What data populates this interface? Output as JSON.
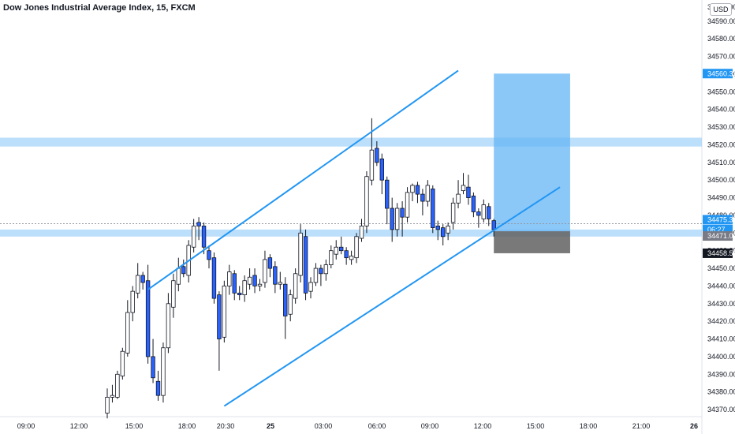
{
  "header": {
    "title": "Dow Jones Industrial Average Index, 15, FXCM",
    "currency": "USD"
  },
  "colors": {
    "bull": "#ffffff",
    "bear": "#2962ff",
    "candle_outline": "#131722",
    "channel": "#2196f3",
    "zone": "#90caf9",
    "target": "#64b5f6",
    "stop": "#616161"
  },
  "chart_data": {
    "type": "candlestick",
    "title": "Dow Jones Industrial Average Index, 15, FXCM",
    "ylim": [
      34366,
      34602
    ],
    "y_ticks": [
      34370,
      34380,
      34390,
      34400,
      34410,
      34420,
      34430,
      34440,
      34450,
      34460,
      34470,
      34480,
      34490,
      34500,
      34510,
      34520,
      34530,
      34540,
      34550,
      34560,
      34570,
      34580,
      34590
    ],
    "y_top_partial_label": "34600.00",
    "x_ticks": [
      "09:00",
      "12:00",
      "15:00",
      "18:00",
      "20:30",
      "25",
      "03:00",
      "06:00",
      "09:00",
      "12:00",
      "15:00",
      "18:00",
      "21:00",
      "26"
    ],
    "price_tags": [
      {
        "label": "34560.32",
        "style": "target"
      },
      {
        "label": "34475.31",
        "style": "last"
      },
      {
        "label": "06:27",
        "style": "countdown"
      },
      {
        "label": "34471.02",
        "style": "entry"
      },
      {
        "label": "34458.55",
        "style": "stop"
      }
    ],
    "zones": [
      {
        "low": 34519,
        "high": 34524
      },
      {
        "low": 34468,
        "high": 34472
      }
    ],
    "channel_lines": [
      {
        "from": [
          8,
          34438
        ],
        "to": [
          69,
          34562
        ]
      },
      {
        "from": [
          23,
          34372
        ],
        "to": [
          89,
          34496
        ]
      }
    ],
    "position": {
      "entry": 34471.02,
      "target": 34560.32,
      "stop": 34458.55,
      "start_index": 76,
      "end_index": 91
    },
    "candles": [
      [
        34377,
        34368,
        34382,
        34365
      ],
      [
        34378,
        34377,
        34384,
        34374
      ],
      [
        34390,
        34377,
        34392,
        34376
      ],
      [
        34403,
        34389,
        34405,
        34387
      ],
      [
        34425,
        34402,
        34432,
        34400
      ],
      [
        34437,
        34425,
        34440,
        34420
      ],
      [
        34446,
        34436,
        34453,
        34433
      ],
      [
        34442,
        34446,
        34448,
        34438
      ],
      [
        34400,
        34443,
        34452,
        34396
      ],
      [
        34388,
        34400,
        34410,
        34385
      ],
      [
        34378,
        34386,
        34392,
        34375
      ],
      [
        34405,
        34378,
        34408,
        34374
      ],
      [
        34430,
        34405,
        34436,
        34402
      ],
      [
        34443,
        34428,
        34447,
        34422
      ],
      [
        34450,
        34441,
        34456,
        34437
      ],
      [
        34447,
        34451,
        34455,
        34445
      ],
      [
        34463,
        34446,
        34466,
        34442
      ],
      [
        34474,
        34462,
        34478,
        34459
      ],
      [
        34474,
        34476,
        34479,
        34466
      ],
      [
        34462,
        34474,
        34476,
        34458
      ],
      [
        34455,
        34460,
        34463,
        34450
      ],
      [
        34433,
        34456,
        34459,
        34430
      ],
      [
        34410,
        34435,
        34437,
        34392
      ],
      [
        34440,
        34411,
        34443,
        34408
      ],
      [
        34448,
        34440,
        34452,
        34435
      ],
      [
        34436,
        34447,
        34449,
        34432
      ],
      [
        34435,
        34436,
        34440,
        34432
      ],
      [
        34443,
        34435,
        34446,
        34431
      ],
      [
        34445,
        34441,
        34450,
        34438
      ],
      [
        34440,
        34446,
        34450,
        34436
      ],
      [
        34441,
        34440,
        34444,
        34437
      ],
      [
        34455,
        34442,
        34460,
        34439
      ],
      [
        34450,
        34456,
        34458,
        34445
      ],
      [
        34441,
        34451,
        34454,
        34436
      ],
      [
        34442,
        34441,
        34448,
        34438
      ],
      [
        34423,
        34441,
        34445,
        34410
      ],
      [
        34435,
        34424,
        34438,
        34420
      ],
      [
        34447,
        34433,
        34450,
        34430
      ],
      [
        34470,
        34446,
        34475,
        34442
      ],
      [
        34436,
        34468,
        34472,
        34432
      ],
      [
        34442,
        34437,
        34445,
        34433
      ],
      [
        34450,
        34442,
        34453,
        34440
      ],
      [
        34447,
        34450,
        34452,
        34440
      ],
      [
        34452,
        34447,
        34455,
        34443
      ],
      [
        34460,
        34452,
        34463,
        34450
      ],
      [
        34462,
        34458,
        34466,
        34455
      ],
      [
        34460,
        34462,
        34468,
        34458
      ],
      [
        34456,
        34460,
        34462,
        34452
      ],
      [
        34457,
        34455,
        34460,
        34452
      ],
      [
        34468,
        34456,
        34470,
        34453
      ],
      [
        34474,
        34467,
        34478,
        34465
      ],
      [
        34502,
        34474,
        34505,
        34470
      ],
      [
        34517,
        34500,
        34535,
        34497
      ],
      [
        34510,
        34518,
        34522,
        34508
      ],
      [
        34500,
        34512,
        34515,
        34492
      ],
      [
        34484,
        34500,
        34502,
        34475
      ],
      [
        34472,
        34484,
        34490,
        34465
      ],
      [
        34484,
        34472,
        34487,
        34468
      ],
      [
        34479,
        34484,
        34488,
        34468
      ],
      [
        34493,
        34479,
        34496,
        34476
      ],
      [
        34497,
        34493,
        34498,
        34488
      ],
      [
        34492,
        34497,
        34499,
        34487
      ],
      [
        34488,
        34492,
        34495,
        34480
      ],
      [
        34497,
        34488,
        34500,
        34485
      ],
      [
        34473,
        34495,
        34497,
        34470
      ],
      [
        34472,
        34474,
        34477,
        34466
      ],
      [
        34468,
        34473,
        34475,
        34463
      ],
      [
        34474,
        34470,
        34476,
        34466
      ],
      [
        34487,
        34476,
        34490,
        34472
      ],
      [
        34492,
        34487,
        34500,
        34484
      ],
      [
        34497,
        34494,
        34504,
        34492
      ],
      [
        34490,
        34496,
        34503,
        34486
      ],
      [
        34482,
        34491,
        34493,
        34479
      ],
      [
        34480,
        34482,
        34484,
        34473
      ],
      [
        34486,
        34478,
        34489,
        34476
      ],
      [
        34478,
        34485,
        34487,
        34474
      ],
      [
        34472,
        34477,
        34478,
        34468
      ]
    ]
  }
}
